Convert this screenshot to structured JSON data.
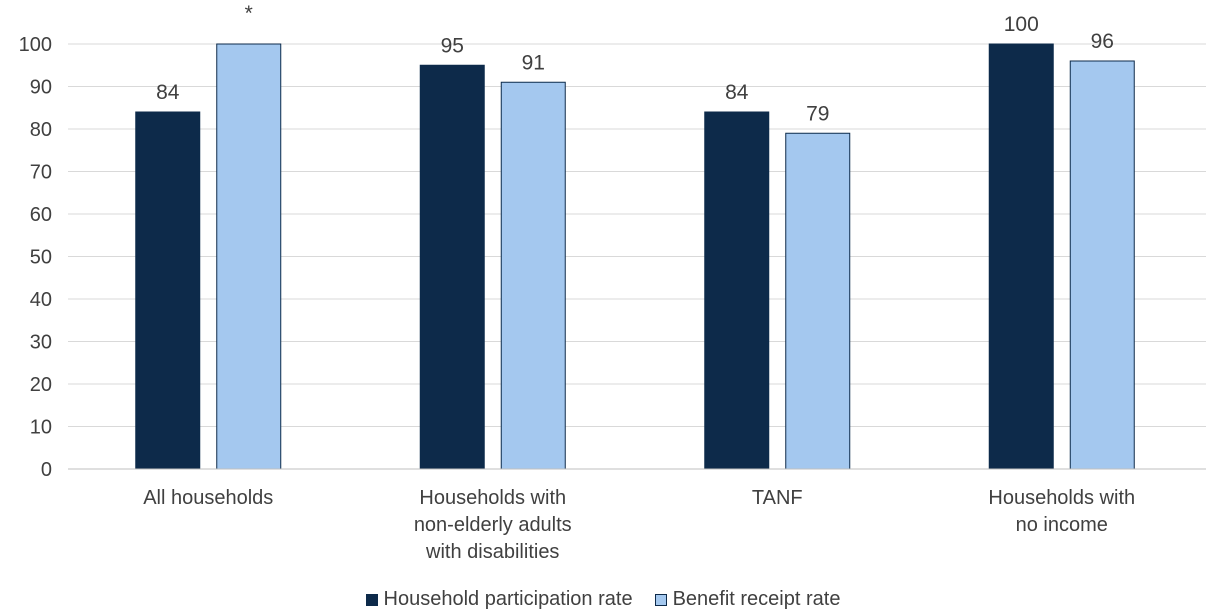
{
  "chart_data": {
    "type": "bar",
    "categories": [
      [
        "All households"
      ],
      [
        "Households with",
        "non-elderly adults",
        "with disabilities"
      ],
      [
        "TANF"
      ],
      [
        "Households with",
        "no income"
      ]
    ],
    "series": [
      {
        "name": "Household participation rate",
        "color": "#0d2a4a",
        "values": [
          84,
          95,
          84,
          100
        ],
        "labels": [
          "84",
          "95",
          "84",
          "100"
        ]
      },
      {
        "name": "Benefit receipt rate",
        "color": "#a4c8ef",
        "values": [
          100,
          91,
          79,
          96
        ],
        "labels": [
          "*",
          "91",
          "79",
          "96"
        ]
      }
    ],
    "ylim": [
      0,
      100
    ],
    "yticks": [
      0,
      10,
      20,
      30,
      40,
      50,
      60,
      70,
      80,
      90,
      100
    ],
    "grid": true,
    "legend": "bottom"
  }
}
